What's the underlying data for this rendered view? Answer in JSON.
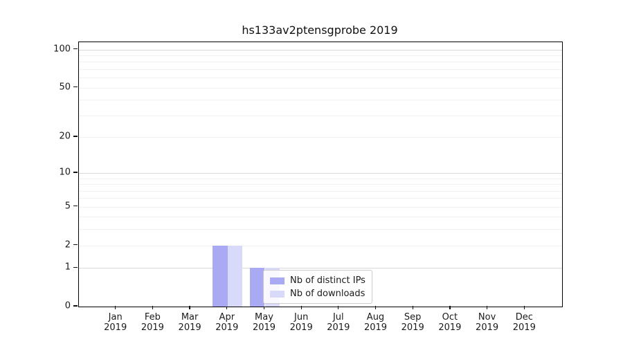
{
  "title": "hs133av2ptensgprobe 2019",
  "chart_data": {
    "type": "bar",
    "title": "hs133av2ptensgprobe 2019",
    "x_months": [
      "Jan",
      "Feb",
      "Mar",
      "Apr",
      "May",
      "Jun",
      "Jul",
      "Aug",
      "Sep",
      "Oct",
      "Nov",
      "Dec"
    ],
    "x_year": "2019",
    "categories": [
      "Jan 2019",
      "Feb 2019",
      "Mar 2019",
      "Apr 2019",
      "May 2019",
      "Jun 2019",
      "Jul 2019",
      "Aug 2019",
      "Sep 2019",
      "Oct 2019",
      "Nov 2019",
      "Dec 2019"
    ],
    "series": [
      {
        "name": "Nb of distinct IPs",
        "color": "#a9a9f4",
        "values": [
          0,
          0,
          0,
          2,
          1,
          0,
          0,
          0,
          0,
          0,
          0,
          0
        ]
      },
      {
        "name": "Nb of downloads",
        "color": "#d9d9f9",
        "values": [
          0,
          0,
          0,
          2,
          1,
          0,
          0,
          0,
          0,
          0,
          0,
          0
        ]
      }
    ],
    "y_ticks": [
      0,
      1,
      2,
      5,
      10,
      20,
      50,
      100
    ],
    "scale": "log1p",
    "ylim": [
      0,
      114
    ],
    "grid": true,
    "gridlines": {
      "major": [
        1,
        10,
        100
      ],
      "minor": [
        2,
        3,
        4,
        5,
        6,
        7,
        8,
        9,
        20,
        30,
        40,
        50,
        60,
        70,
        80,
        90
      ]
    },
    "legend_position": "lower center"
  },
  "colors": {
    "grid_minor": "#f2f2f2",
    "grid_major": "#d9d9d9",
    "spine": "#000000",
    "text": "#1a1a1a"
  }
}
